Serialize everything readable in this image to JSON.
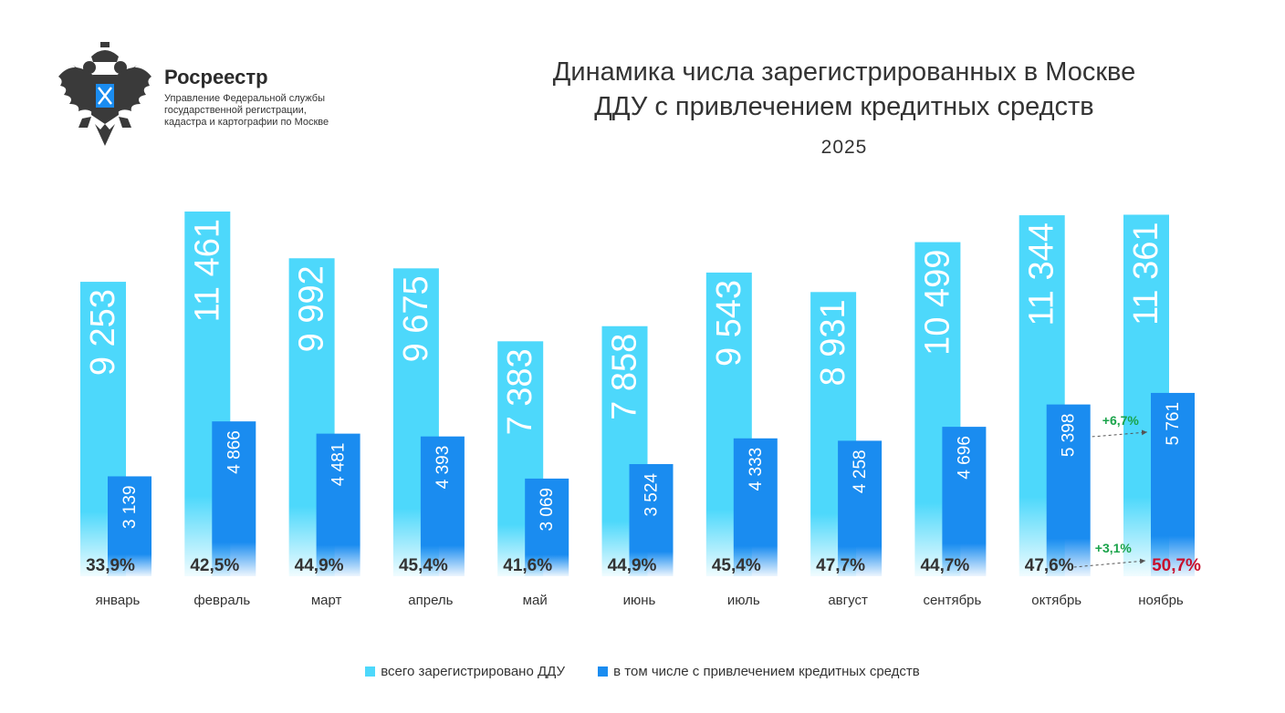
{
  "header": {
    "org_name": "Росреестр",
    "org_desc": [
      "Управление Федеральной службы",
      "государственной регистрации,",
      "кадастра и картографии по Москве"
    ],
    "logo_icon": "double-headed-eagle-emblem"
  },
  "colors": {
    "total": "#4dd8fb",
    "credit": "#1a8cf0",
    "up_green": "#1aa34a",
    "highlight_red": "#c8102e"
  },
  "chart_data": {
    "type": "bar",
    "title": "Динамика числа зарегистрированных в Москве ДДУ с привлечением кредитных средств",
    "title_lines": [
      "Динамика числа зарегистрированных в Москве",
      "ДДУ с привлечением кредитных средств"
    ],
    "subtitle": "2025",
    "categories": [
      "январь",
      "февраль",
      "март",
      "апрель",
      "май",
      "июнь",
      "июль",
      "август",
      "сентябрь",
      "октябрь",
      "ноябрь"
    ],
    "series": [
      {
        "name": "всего зарегистрировано ДДУ",
        "values": [
          9253,
          11461,
          9992,
          9675,
          7383,
          7858,
          9543,
          8931,
          10499,
          11344,
          11361
        ],
        "labels": [
          "9 253",
          "11 461",
          "9 992",
          "9 675",
          "7 383",
          "7 858",
          "9 543",
          "8 931",
          "10 499",
          "11 344",
          "11 361"
        ]
      },
      {
        "name": "в том числе с привлечением кредитных средств",
        "values": [
          3139,
          4866,
          4481,
          4393,
          3069,
          3524,
          4333,
          4258,
          4696,
          5398,
          5761
        ],
        "labels": [
          "3 139",
          "4 866",
          "4 481",
          "4 393",
          "3 069",
          "3 524",
          "4 333",
          "4 258",
          "4 696",
          "5 398",
          "5 761"
        ]
      }
    ],
    "shares": [
      "33,9%",
      "42,5%",
      "44,9%",
      "45,4%",
      "41,6%",
      "44,9%",
      "45,4%",
      "47,7%",
      "44,7%",
      "47,6%",
      "50,7%"
    ],
    "highlight_share_index": 10,
    "annotations": [
      {
        "text": "+6,7%",
        "from": "октябрь",
        "to": "ноябрь",
        "series": "в том числе с привлечением кредитных средств"
      },
      {
        "text": "+3,1%",
        "from": "октябрь",
        "to": "ноябрь",
        "series": "share"
      }
    ],
    "ylim": [
      0,
      12000
    ],
    "grid": false,
    "legend_position": "bottom"
  }
}
